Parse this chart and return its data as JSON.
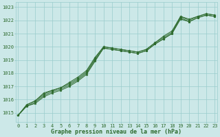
{
  "title": "Graphe pression niveau de la mer (hPa)",
  "x_ticks": [
    0,
    1,
    2,
    3,
    4,
    5,
    6,
    7,
    8,
    9,
    10,
    11,
    12,
    13,
    14,
    15,
    16,
    17,
    18,
    19,
    20,
    21,
    22,
    23
  ],
  "y_ticks": [
    1015,
    1016,
    1017,
    1018,
    1019,
    1020,
    1021,
    1022,
    1023
  ],
  "ylim": [
    1014.3,
    1023.4
  ],
  "xlim": [
    -0.3,
    23.3
  ],
  "bg_color": "#cce8e8",
  "grid_color": "#99cccc",
  "line_color": "#2d6a2d",
  "series": [
    [
      1014.8,
      1015.5,
      1015.8,
      1016.3,
      1016.6,
      1016.8,
      1017.1,
      1017.5,
      1018.0,
      1019.0,
      1019.9,
      1019.8,
      1019.7,
      1019.6,
      1019.5,
      1019.7,
      1020.2,
      1020.6,
      1021.0,
      1022.2,
      1021.9,
      1022.2,
      1022.4,
      1022.3
    ],
    [
      1014.8,
      1015.5,
      1015.7,
      1016.2,
      1016.5,
      1016.7,
      1017.0,
      1017.4,
      1017.9,
      1018.9,
      1019.9,
      1019.8,
      1019.7,
      1019.6,
      1019.5,
      1019.7,
      1020.2,
      1020.6,
      1021.0,
      1022.1,
      1021.9,
      1022.2,
      1022.4,
      1022.3
    ],
    [
      1014.8,
      1015.6,
      1015.9,
      1016.4,
      1016.7,
      1016.9,
      1017.2,
      1017.6,
      1018.1,
      1019.1,
      1020.0,
      1019.9,
      1019.8,
      1019.7,
      1019.6,
      1019.8,
      1020.3,
      1020.7,
      1021.1,
      1022.3,
      1022.0,
      1022.3,
      1022.5,
      1022.4
    ],
    [
      1014.8,
      1015.6,
      1015.9,
      1016.5,
      1016.7,
      1016.9,
      1017.3,
      1017.7,
      1018.2,
      1019.2,
      1020.0,
      1019.9,
      1019.8,
      1019.7,
      1019.6,
      1019.8,
      1020.3,
      1020.8,
      1021.2,
      1022.3,
      1022.1,
      1022.3,
      1022.5,
      1022.4
    ]
  ],
  "figsize": [
    3.2,
    2.0
  ],
  "dpi": 100,
  "title_fontsize": 6.0,
  "tick_fontsize": 5.0,
  "linewidth": 0.7,
  "markersize": 2.5
}
